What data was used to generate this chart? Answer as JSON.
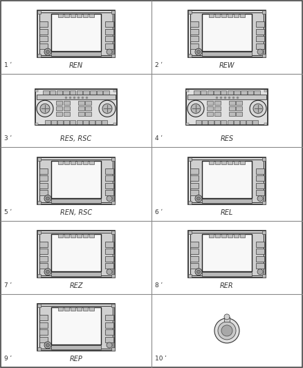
{
  "background_color": "#ffffff",
  "border_color": "#555555",
  "grid_color": "#888888",
  "items": [
    {
      "num": "1",
      "label": "REN",
      "type": "nav",
      "row": 0,
      "col": 0
    },
    {
      "num": "2",
      "label": "REW",
      "type": "nav",
      "row": 0,
      "col": 1
    },
    {
      "num": "3",
      "label": "RES, RSC",
      "type": "cd",
      "row": 1,
      "col": 0
    },
    {
      "num": "4",
      "label": "RES",
      "type": "cd",
      "row": 1,
      "col": 1
    },
    {
      "num": "5",
      "label": "REN, RSC",
      "type": "nav2",
      "row": 2,
      "col": 0
    },
    {
      "num": "6",
      "label": "REL",
      "type": "nav2",
      "row": 2,
      "col": 1
    },
    {
      "num": "7",
      "label": "REZ",
      "type": "nav2",
      "row": 3,
      "col": 0
    },
    {
      "num": "8",
      "label": "RER",
      "type": "nav2",
      "row": 3,
      "col": 1
    },
    {
      "num": "9",
      "label": "REP",
      "type": "nav2",
      "row": 4,
      "col": 0
    },
    {
      "num": "10",
      "label": "",
      "type": "knob",
      "row": 4,
      "col": 1
    }
  ],
  "cols": 2,
  "rows": 5,
  "fig_w": 4.38,
  "fig_h": 5.33,
  "dpi": 100
}
